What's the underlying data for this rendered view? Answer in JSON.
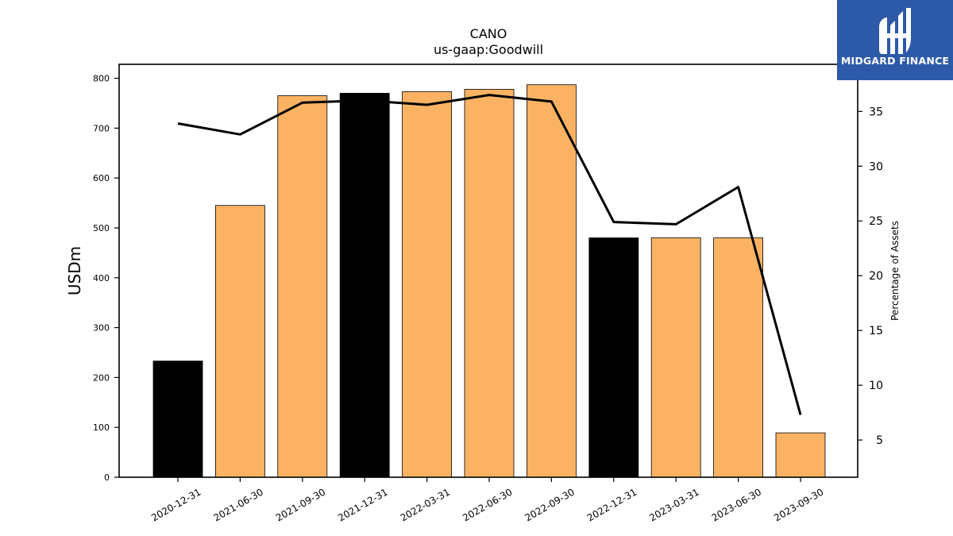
{
  "chart_data": {
    "type": "bar",
    "title": "CANO",
    "subtitle": "us-gaap:Goodwill",
    "ylabel": "USDm",
    "y2label": "Percentage of Assets",
    "categories": [
      "2020-12-31",
      "2021-06-30",
      "2021-09-30",
      "2021-12-31",
      "2022-03-31",
      "2022-06-30",
      "2022-09-30",
      "2022-12-31",
      "2023-03-31",
      "2023-06-30",
      "2023-09-30"
    ],
    "values": [
      233,
      545,
      765,
      770,
      773,
      778,
      787,
      480,
      480,
      480,
      89
    ],
    "bar_colors": [
      "#000000",
      "#fbb363",
      "#fbb363",
      "#000000",
      "#fbb363",
      "#fbb363",
      "#fbb363",
      "#000000",
      "#fbb363",
      "#fbb363",
      "#fbb363"
    ],
    "line_values": [
      33.9,
      32.9,
      35.8,
      36.0,
      35.6,
      36.5,
      35.9,
      24.9,
      24.7,
      28.1,
      7.3
    ],
    "ylim": [
      0,
      828
    ],
    "y_ticks": [
      "0",
      "100",
      "200",
      "300",
      "400",
      "500",
      "600",
      "700",
      "800"
    ],
    "y2lim": [
      1.6,
      39.3
    ],
    "y2_ticks": [
      "5",
      "10",
      "15",
      "20",
      "25",
      "30",
      "35"
    ],
    "colors": {
      "bar_orange": "#fbb363",
      "bar_black": "#000000",
      "line": "#000000"
    }
  },
  "logo": {
    "text": "MIDGARD FINANCE",
    "bg": "#2d5aa8"
  }
}
